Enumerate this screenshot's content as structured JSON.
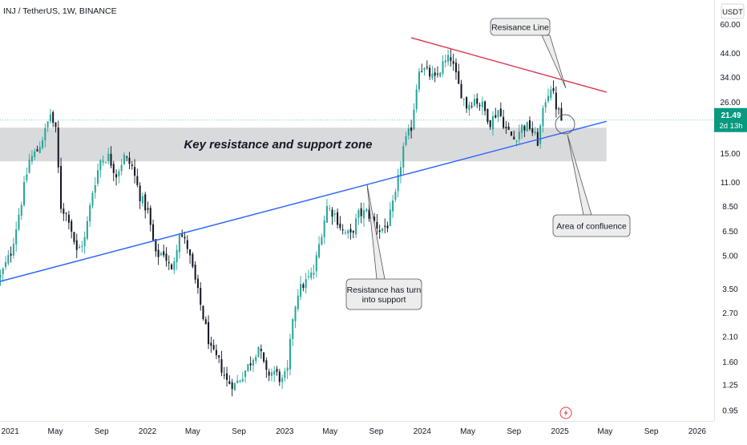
{
  "chart_data": {
    "type": "candlestick",
    "symbol_header": "INJ / TetherUS, 1W, BINANCE",
    "currency_badge": "USDT",
    "price_scale": "log",
    "x_range": [
      "2020-12-05",
      "2026-02-15"
    ],
    "y_range": [
      0.85,
      78
    ],
    "x_ticks": [
      {
        "label": "2021",
        "date": "2021-01-01"
      },
      {
        "label": "May",
        "date": "2021-05-01"
      },
      {
        "label": "Sep",
        "date": "2021-09-01"
      },
      {
        "label": "2022",
        "date": "2022-01-01"
      },
      {
        "label": "May",
        "date": "2022-05-01"
      },
      {
        "label": "Sep",
        "date": "2022-09-01"
      },
      {
        "label": "2023",
        "date": "2023-01-01"
      },
      {
        "label": "May",
        "date": "2023-05-01"
      },
      {
        "label": "Sep",
        "date": "2023-09-01"
      },
      {
        "label": "2024",
        "date": "2024-01-01"
      },
      {
        "label": "May",
        "date": "2024-05-01"
      },
      {
        "label": "Sep",
        "date": "2024-09-01"
      },
      {
        "label": "2025",
        "date": "2025-01-01"
      },
      {
        "label": "May",
        "date": "2025-05-01"
      },
      {
        "label": "Sep",
        "date": "2025-09-01"
      },
      {
        "label": "2026",
        "date": "2026-01-01"
      }
    ],
    "y_ticks": [
      "60.00",
      "44.00",
      "34.00",
      "26.00",
      "15.00",
      "11.00",
      "8.50",
      "6.50",
      "5.00",
      "3.50",
      "2.70",
      "2.10",
      "1.60",
      "1.25",
      "0.95"
    ],
    "price_anchors": [
      [
        "2020-12-06",
        4.0
      ],
      [
        "2021-01-03",
        5.2
      ],
      [
        "2021-01-31",
        9.0
      ],
      [
        "2021-02-21",
        14.0
      ],
      [
        "2021-03-14",
        15.5
      ],
      [
        "2021-04-04",
        19.0
      ],
      [
        "2021-04-18",
        23.0
      ],
      [
        "2021-05-02",
        19.0
      ],
      [
        "2021-05-16",
        8.5
      ],
      [
        "2021-06-06",
        7.5
      ],
      [
        "2021-06-27",
        5.2
      ],
      [
        "2021-07-18",
        6.0
      ],
      [
        "2021-08-08",
        10.0
      ],
      [
        "2021-08-29",
        14.0
      ],
      [
        "2021-09-19",
        14.5
      ],
      [
        "2021-10-10",
        12.0
      ],
      [
        "2021-10-31",
        14.5
      ],
      [
        "2021-11-21",
        13.0
      ],
      [
        "2021-12-12",
        9.5
      ],
      [
        "2022-01-02",
        8.0
      ],
      [
        "2022-01-23",
        5.0
      ],
      [
        "2022-02-13",
        5.2
      ],
      [
        "2022-03-06",
        4.2
      ],
      [
        "2022-03-27",
        6.5
      ],
      [
        "2022-04-17",
        5.5
      ],
      [
        "2022-05-08",
        3.8
      ],
      [
        "2022-05-29",
        2.6
      ],
      [
        "2022-06-19",
        1.8
      ],
      [
        "2022-07-10",
        1.6
      ],
      [
        "2022-07-31",
        1.3
      ],
      [
        "2022-08-21",
        1.25
      ],
      [
        "2022-09-11",
        1.4
      ],
      [
        "2022-10-02",
        1.6
      ],
      [
        "2022-10-23",
        1.9
      ],
      [
        "2022-11-13",
        1.4
      ],
      [
        "2022-12-04",
        1.45
      ],
      [
        "2022-12-25",
        1.3
      ],
      [
        "2023-01-08",
        1.45
      ],
      [
        "2023-01-22",
        2.6
      ],
      [
        "2023-02-05",
        3.4
      ],
      [
        "2023-02-26",
        3.8
      ],
      [
        "2023-03-19",
        4.2
      ],
      [
        "2023-04-09",
        6.5
      ],
      [
        "2023-04-23",
        8.5
      ],
      [
        "2023-05-14",
        7.8
      ],
      [
        "2023-06-04",
        6.5
      ],
      [
        "2023-06-25",
        6.2
      ],
      [
        "2023-07-16",
        7.8
      ],
      [
        "2023-08-06",
        8.0
      ],
      [
        "2023-08-27",
        7.2
      ],
      [
        "2023-09-10",
        6.6
      ],
      [
        "2023-10-01",
        7.0
      ],
      [
        "2023-10-22",
        9.5
      ],
      [
        "2023-11-12",
        16.0
      ],
      [
        "2023-12-03",
        20.0
      ],
      [
        "2023-12-24",
        38.0
      ],
      [
        "2024-01-14",
        36.0
      ],
      [
        "2024-02-04",
        33.0
      ],
      [
        "2024-02-25",
        39.0
      ],
      [
        "2024-03-17",
        42.0
      ],
      [
        "2024-04-07",
        31.0
      ],
      [
        "2024-04-28",
        25.0
      ],
      [
        "2024-05-19",
        27.0
      ],
      [
        "2024-06-09",
        25.0
      ],
      [
        "2024-06-30",
        21.0
      ],
      [
        "2024-07-21",
        24.0
      ],
      [
        "2024-08-11",
        19.5
      ],
      [
        "2024-09-01",
        17.5
      ],
      [
        "2024-09-22",
        20.0
      ],
      [
        "2024-10-13",
        20.0
      ],
      [
        "2024-11-03",
        17.0
      ],
      [
        "2024-11-24",
        27.0
      ],
      [
        "2024-12-08",
        31.0
      ],
      [
        "2024-12-22",
        25.0
      ],
      [
        "2025-01-05",
        21.49
      ]
    ],
    "current_price": "21.49",
    "current_countdown": "2d 13h",
    "zone": {
      "label": "Key resistance and support zone",
      "low": 13.8,
      "high": 19.8,
      "from": "2020-12-05",
      "to": "2025-05-05"
    },
    "trendlines": [
      {
        "name": "support",
        "color": "#2962ff",
        "from": [
          "2020-12-05",
          3.8
        ],
        "to": [
          "2025-05-05",
          21.2
        ]
      },
      {
        "name": "resistance",
        "color": "#e0314b",
        "from": [
          "2023-12-03",
          52.0
        ],
        "to": [
          "2025-05-05",
          29.0
        ]
      }
    ],
    "annotations": [
      {
        "text": "Resisance Line"
      },
      {
        "text": "Resistance has turn into support"
      },
      {
        "text": "Area of confluence"
      }
    ],
    "colors": {
      "up": "#26a69a",
      "down": "#131722",
      "zone": "#d9dadc",
      "support": "#2962ff",
      "resistance": "#e0314b",
      "price_tag": "#089981"
    }
  }
}
